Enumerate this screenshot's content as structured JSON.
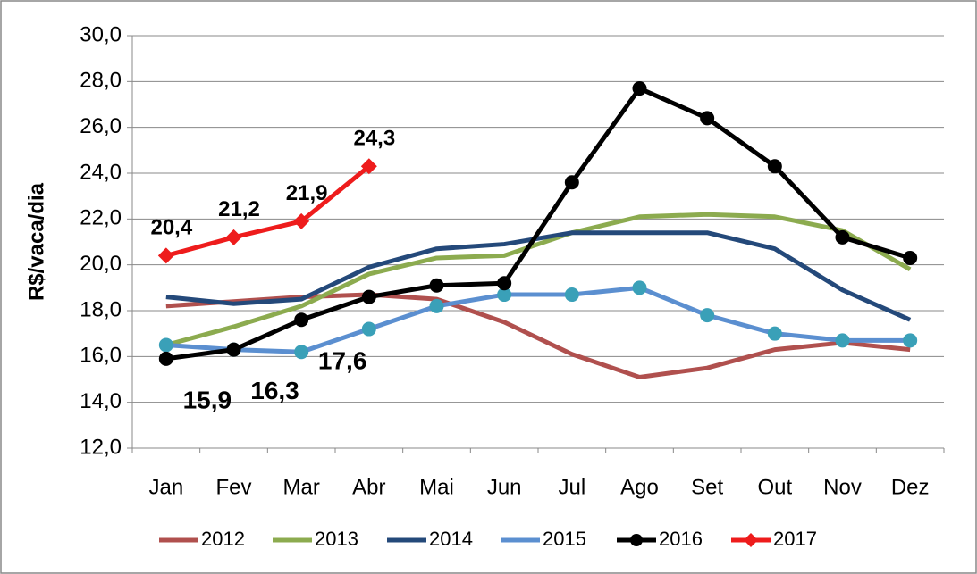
{
  "chart_data": {
    "type": "line",
    "y_label": "R$/vaca/dia",
    "categories": [
      "Jan",
      "Fev",
      "Mar",
      "Abr",
      "Mai",
      "Jun",
      "Jul",
      "Ago",
      "Set",
      "Out",
      "Nov",
      "Dez"
    ],
    "ylim": [
      12,
      30
    ],
    "yticks": [
      {
        "value": 12,
        "label": "12,0"
      },
      {
        "value": 14,
        "label": "14,0"
      },
      {
        "value": 16,
        "label": "16,0"
      },
      {
        "value": 18,
        "label": "18,0"
      },
      {
        "value": 20,
        "label": "20,0"
      },
      {
        "value": 22,
        "label": "22,0"
      },
      {
        "value": 24,
        "label": "24,0"
      },
      {
        "value": 26,
        "label": "26,0"
      },
      {
        "value": 28,
        "label": "28,0"
      },
      {
        "value": 30,
        "label": "30,0"
      }
    ],
    "grid": true,
    "legend": "bottom",
    "series": [
      {
        "name": "2012",
        "color": "#b0504e",
        "marker": false,
        "values": [
          18.2,
          18.4,
          18.6,
          18.7,
          18.5,
          17.5,
          16.1,
          15.1,
          15.5,
          16.3,
          16.6,
          16.3
        ]
      },
      {
        "name": "2013",
        "color": "#8cab4f",
        "marker": false,
        "values": [
          16.5,
          17.3,
          18.2,
          19.6,
          20.3,
          20.4,
          21.4,
          22.1,
          22.2,
          22.1,
          21.5,
          19.8
        ]
      },
      {
        "name": "2014",
        "color": "#24497a",
        "marker": false,
        "values": [
          18.6,
          18.3,
          18.5,
          19.9,
          20.7,
          20.9,
          21.4,
          21.4,
          21.4,
          20.7,
          18.9,
          17.6
        ]
      },
      {
        "name": "2015",
        "color": "#5b8fd0",
        "marker": true,
        "marker_color": "#3aa0b8",
        "values": [
          16.5,
          16.3,
          16.2,
          17.2,
          18.2,
          18.7,
          18.7,
          19.0,
          17.8,
          17.0,
          16.7,
          16.7
        ]
      },
      {
        "name": "2016",
        "color": "#000000",
        "marker": true,
        "marker_color": "#000000",
        "values": [
          15.9,
          16.3,
          17.6,
          18.6,
          19.1,
          19.2,
          23.6,
          27.7,
          26.4,
          24.3,
          21.2,
          20.3
        ],
        "value_labels": [
          "15,9",
          "16,3",
          "17,6",
          null,
          null,
          null,
          null,
          null,
          null,
          null,
          null,
          null
        ]
      },
      {
        "name": "2017",
        "color": "#ee1c1c",
        "marker": true,
        "marker_color": "#ee1c1c",
        "marker_shape": "diamond",
        "values": [
          20.4,
          21.2,
          21.9,
          24.3,
          null,
          null,
          null,
          null,
          null,
          null,
          null,
          null
        ],
        "value_labels": [
          "20,4",
          "21,2",
          "21,9",
          "24,3",
          null,
          null,
          null,
          null,
          null,
          null,
          null,
          null
        ]
      }
    ]
  }
}
